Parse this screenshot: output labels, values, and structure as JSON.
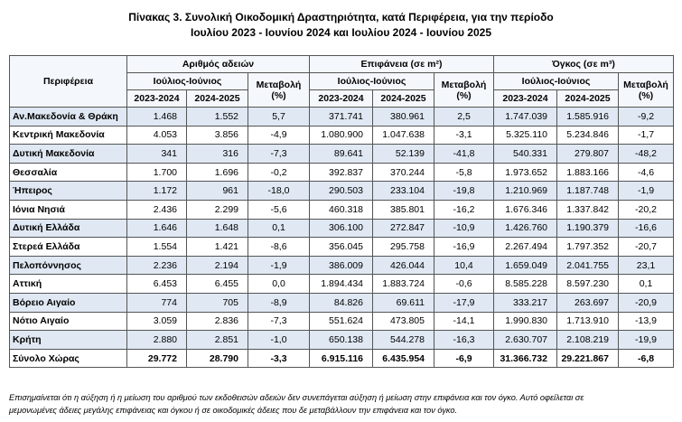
{
  "header": {
    "title_line1": "Πίνακας 3. Συνολική Οικοδομική Δραστηριότητα, κατά Περιφέρεια, για την περίοδο",
    "title_line2": "Ιουλίου 2023 - Ιουνίου 2024 και Ιουλίου 2024 - Ιουνίου 2025"
  },
  "table": {
    "region_header": "Περιφέρεια",
    "groups": [
      "Αριθμός αδειών",
      "Επιφάνεια (σε m²)",
      "Όγκος (σε m³)"
    ],
    "period": "Ιούλιος-Ιούνιος",
    "change": "Μεταβολή (%)",
    "years": [
      "2023-2024",
      "2024-2025"
    ],
    "rows": [
      [
        "Αν.Μακεδονία & Θράκη",
        "1.468",
        "1.552",
        "5,7",
        "371.741",
        "380.961",
        "2,5",
        "1.747.039",
        "1.585.916",
        "-9,2"
      ],
      [
        "Κεντρική Μακεδονία",
        "4.053",
        "3.856",
        "-4,9",
        "1.080.900",
        "1.047.638",
        "-3,1",
        "5.325.110",
        "5.234.846",
        "-1,7"
      ],
      [
        "Δυτική Μακεδονία",
        "341",
        "316",
        "-7,3",
        "89.641",
        "52.139",
        "-41,8",
        "540.331",
        "279.807",
        "-48,2"
      ],
      [
        "Θεσσαλία",
        "1.700",
        "1.696",
        "-0,2",
        "392.837",
        "370.244",
        "-5,8",
        "1.973.652",
        "1.883.166",
        "-4,6"
      ],
      [
        "Ήπειρος",
        "1.172",
        "961",
        "-18,0",
        "290.503",
        "233.104",
        "-19,8",
        "1.210.969",
        "1.187.748",
        "-1,9"
      ],
      [
        "Ιόνια Νησιά",
        "2.436",
        "2.299",
        "-5,6",
        "460.318",
        "385.801",
        "-16,2",
        "1.676.346",
        "1.337.842",
        "-20,2"
      ],
      [
        "Δυτική Ελλάδα",
        "1.646",
        "1.648",
        "0,1",
        "306.100",
        "272.847",
        "-10,9",
        "1.426.760",
        "1.190.379",
        "-16,6"
      ],
      [
        "Στερεά Ελλάδα",
        "1.554",
        "1.421",
        "-8,6",
        "356.045",
        "295.758",
        "-16,9",
        "2.267.494",
        "1.797.352",
        "-20,7"
      ],
      [
        "Πελοπόννησος",
        "2.236",
        "2.194",
        "-1,9",
        "386.009",
        "426.044",
        "10,4",
        "1.659.049",
        "2.041.755",
        "23,1"
      ],
      [
        "Αττική",
        "6.453",
        "6.455",
        "0,0",
        "1.894.434",
        "1.883.724",
        "-0,6",
        "8.585.228",
        "8.597.230",
        "0,1"
      ],
      [
        "Βόρειο Αιγαίο",
        "774",
        "705",
        "-8,9",
        "84.826",
        "69.611",
        "-17,9",
        "333.217",
        "263.697",
        "-20,9"
      ],
      [
        "Νότιο Αιγαίο",
        "3.059",
        "2.836",
        "-7,3",
        "551.624",
        "473.805",
        "-14,1",
        "1.990.830",
        "1.713.910",
        "-13,9"
      ],
      [
        "Κρήτη",
        "2.880",
        "2.851",
        "-1,0",
        "650.138",
        "544.278",
        "-16,3",
        "2.630.707",
        "2.108.219",
        "-19,9"
      ],
      [
        "Σύνολο Χώρας",
        "29.772",
        "28.790",
        "-3,3",
        "6.915.116",
        "6.435.954",
        "-6,9",
        "31.366.732",
        "29.221.867",
        "-6,8"
      ]
    ]
  },
  "footnote": {
    "line1": "Επισημαίνεται ότι η αύξηση ή η μείωση του αριθμού των εκδοθεισών αδειών δεν συνεπάγεται αύξηση ή μείωση στην επιφάνεια και τον όγκο. Αυτό οφείλεται σε",
    "line2": "μεμονωμένες άδειες μεγάλης επιφάνειας και όγκου ή σε οικοδομικές άδειες που δε μεταβάλλουν την επιφάνεια και τον όγκο."
  }
}
